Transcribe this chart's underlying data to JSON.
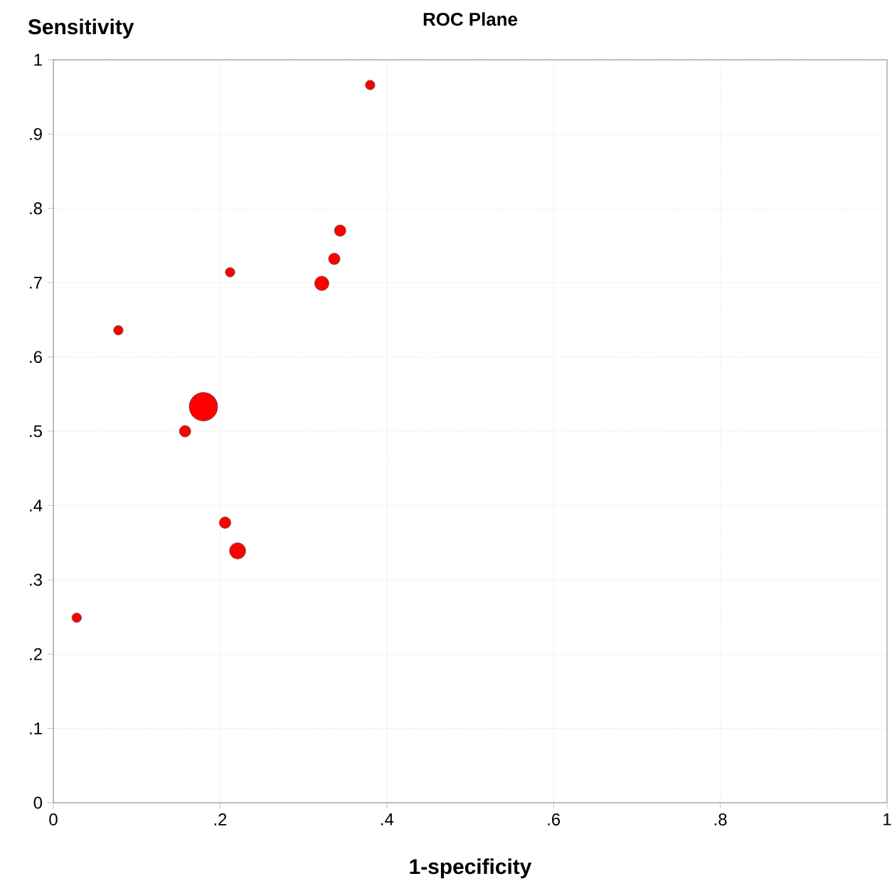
{
  "chart_data": {
    "type": "bubble",
    "title": "ROC Plane",
    "xlabel": "1-specificity",
    "ylabel": "Sensitivity",
    "x": [
      0.38,
      0.344,
      0.337,
      0.322,
      0.212,
      0.078,
      0.18,
      0.158,
      0.206,
      0.221,
      0.028
    ],
    "values": [
      0.966,
      0.77,
      0.732,
      0.699,
      0.714,
      0.636,
      0.533,
      0.5,
      0.377,
      0.339,
      0.249
    ],
    "sizes": [
      0.11,
      0.16,
      0.16,
      0.25,
      0.11,
      0.11,
      1,
      0.16,
      0.16,
      0.32,
      0.11
    ],
    "color": "#ff0000",
    "marker": "circle",
    "grid": true,
    "xlim": [
      0,
      1
    ],
    "ylim": [
      0,
      1
    ],
    "xticks": [
      0,
      {
        "value": 0.2,
        "label": ".2"
      },
      {
        "value": 0.4,
        "label": ".4"
      },
      {
        "value": 0.6,
        "label": ".6"
      },
      {
        "value": 0.8,
        "label": ".8"
      },
      1
    ],
    "yticks": [
      0,
      {
        "value": 0.1,
        "label": ".1"
      },
      {
        "value": 0.2,
        "label": ".2"
      },
      {
        "value": 0.3,
        "label": ".3"
      },
      {
        "value": 0.4,
        "label": ".4"
      },
      {
        "value": 0.5,
        "label": ".5"
      },
      {
        "value": 0.6,
        "label": ".6"
      },
      {
        "value": 0.7,
        "label": ".7"
      },
      {
        "value": 0.8,
        "label": ".8"
      },
      {
        "value": 0.9,
        "label": ".9"
      },
      1
    ]
  }
}
